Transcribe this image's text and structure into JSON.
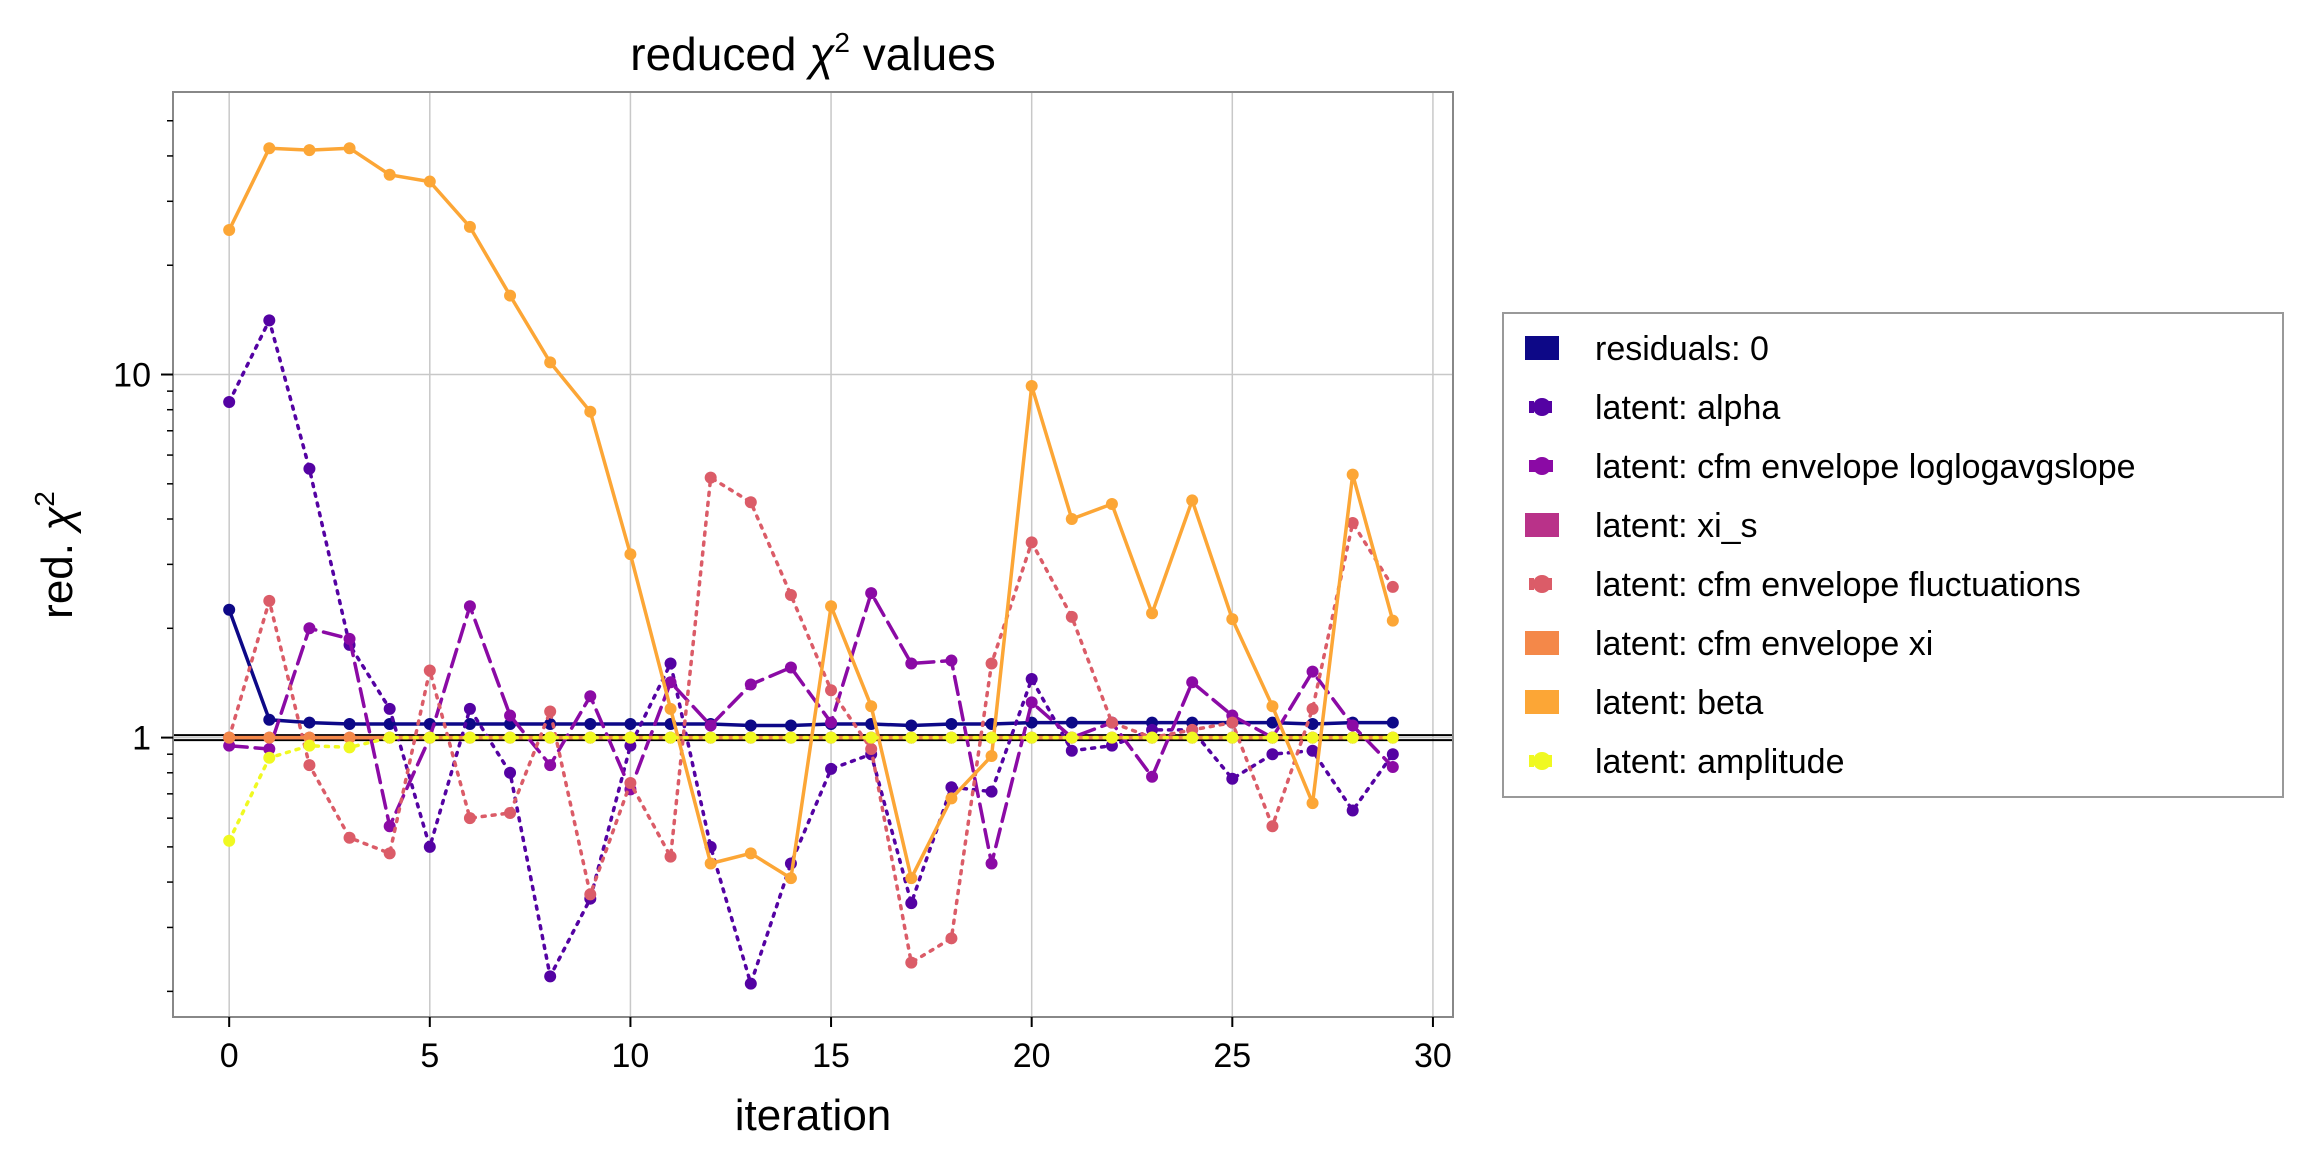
{
  "chart_data": {
    "type": "line",
    "title_main": "reduced ",
    "title_chi": "χ",
    "title_sup": "2",
    "title_tail": " values",
    "xlabel": "iteration",
    "ylabel_main": "red. ",
    "ylabel_chi": "χ",
    "ylabel_sup": "2",
    "xlim": [
      -1.4,
      30.5
    ],
    "ylim": [
      0.17,
      60
    ],
    "yscale": "log",
    "xticks": [
      0,
      5,
      10,
      15,
      20,
      25,
      30
    ],
    "xtick_labels": [
      "0",
      "5",
      "10",
      "15",
      "20",
      "25",
      "30"
    ],
    "yticks": [
      1,
      10
    ],
    "ytick_labels": [
      "1",
      "10"
    ],
    "grid": true,
    "reference_line": 1,
    "legend_position": "outside-right",
    "x": [
      0,
      1,
      2,
      3,
      4,
      5,
      6,
      7,
      8,
      9,
      10,
      11,
      12,
      13,
      14,
      15,
      16,
      17,
      18,
      19,
      20,
      21,
      22,
      23,
      24,
      25,
      26,
      27,
      28,
      29
    ],
    "series": [
      {
        "name": "residuals: 0",
        "color": "#0d0887",
        "style": "solid",
        "values": [
          2.25,
          1.12,
          1.1,
          1.09,
          1.09,
          1.09,
          1.09,
          1.09,
          1.09,
          1.09,
          1.09,
          1.09,
          1.09,
          1.08,
          1.08,
          1.09,
          1.09,
          1.08,
          1.09,
          1.09,
          1.1,
          1.1,
          1.1,
          1.1,
          1.1,
          1.1,
          1.1,
          1.09,
          1.1,
          1.1
        ]
      },
      {
        "name": "latent: alpha",
        "color": "#5402a3",
        "style": "dotted",
        "values": [
          8.4,
          14.1,
          5.5,
          1.8,
          1.2,
          0.5,
          1.2,
          0.8,
          0.22,
          0.36,
          0.95,
          1.6,
          0.5,
          0.21,
          0.45,
          0.82,
          0.9,
          0.35,
          0.73,
          0.71,
          1.45,
          0.92,
          0.95,
          1.05,
          1.05,
          0.77,
          0.9,
          0.92,
          0.63,
          0.9
        ]
      },
      {
        "name": "latent: cfm envelope loglogavgslope",
        "color": "#8b0aa5",
        "style": "dashed",
        "values": [
          0.95,
          0.93,
          2.0,
          1.87,
          0.57,
          1.0,
          2.3,
          1.15,
          0.84,
          1.3,
          0.72,
          1.42,
          1.08,
          1.4,
          1.56,
          1.1,
          2.5,
          1.6,
          1.63,
          0.45,
          1.25,
          1.0,
          1.1,
          0.78,
          1.42,
          1.15,
          1.0,
          1.52,
          1.08,
          0.83
        ]
      },
      {
        "name": "latent: xi_s",
        "color": "#b93289",
        "style": "solid",
        "values": [
          1.0,
          1.0,
          1.0,
          1.0,
          1.0,
          1.0,
          1.0,
          1.0,
          1.0,
          1.0,
          1.0,
          1.0,
          1.0,
          1.0,
          1.0,
          1.0,
          1.0,
          1.0,
          1.0,
          1.0,
          1.0,
          1.0,
          1.0,
          1.0,
          1.0,
          1.0,
          1.0,
          1.0,
          1.0,
          1.0
        ]
      },
      {
        "name": "latent: cfm envelope fluctuations",
        "color": "#db5c68",
        "style": "dotted",
        "values": [
          1.0,
          2.38,
          0.84,
          0.53,
          0.48,
          1.53,
          0.6,
          0.62,
          1.18,
          0.37,
          0.75,
          0.47,
          5.2,
          4.45,
          2.47,
          1.35,
          0.93,
          0.24,
          0.28,
          1.6,
          3.45,
          2.15,
          1.1,
          1.0,
          1.05,
          1.1,
          0.57,
          1.2,
          3.9,
          2.6
        ]
      },
      {
        "name": "latent: cfm envelope xi",
        "color": "#f48849",
        "style": "solid",
        "values": [
          1.0,
          1.0,
          1.0,
          1.0,
          1.0,
          1.0,
          1.0,
          1.0,
          1.0,
          1.0,
          1.0,
          1.0,
          1.0,
          1.0,
          1.0,
          1.0,
          1.0,
          1.0,
          1.0,
          1.0,
          1.0,
          1.0,
          1.0,
          1.0,
          1.0,
          1.0,
          1.0,
          1.0,
          1.0,
          1.0
        ]
      },
      {
        "name": "latent: beta",
        "color": "#fca636",
        "style": "solid",
        "values": [
          25,
          42,
          41.5,
          42,
          35.5,
          34,
          25.5,
          16.5,
          10.8,
          7.9,
          3.2,
          1.2,
          0.45,
          0.48,
          0.41,
          2.3,
          1.22,
          0.41,
          0.68,
          0.89,
          9.3,
          4.0,
          4.4,
          2.2,
          4.5,
          2.12,
          1.22,
          0.66,
          5.3,
          2.1
        ]
      },
      {
        "name": "latent: amplitude",
        "color": "#f0f921",
        "style": "dotted",
        "values": [
          0.52,
          0.88,
          0.95,
          0.94,
          1.0,
          1.0,
          1.0,
          1.0,
          1.0,
          1.0,
          1.0,
          1.0,
          1.0,
          1.0,
          1.0,
          1.0,
          1.0,
          1.0,
          1.0,
          1.0,
          1.0,
          1.0,
          1.0,
          1.0,
          1.0,
          1.0,
          1.0,
          1.0,
          1.0,
          1.0
        ]
      }
    ]
  }
}
